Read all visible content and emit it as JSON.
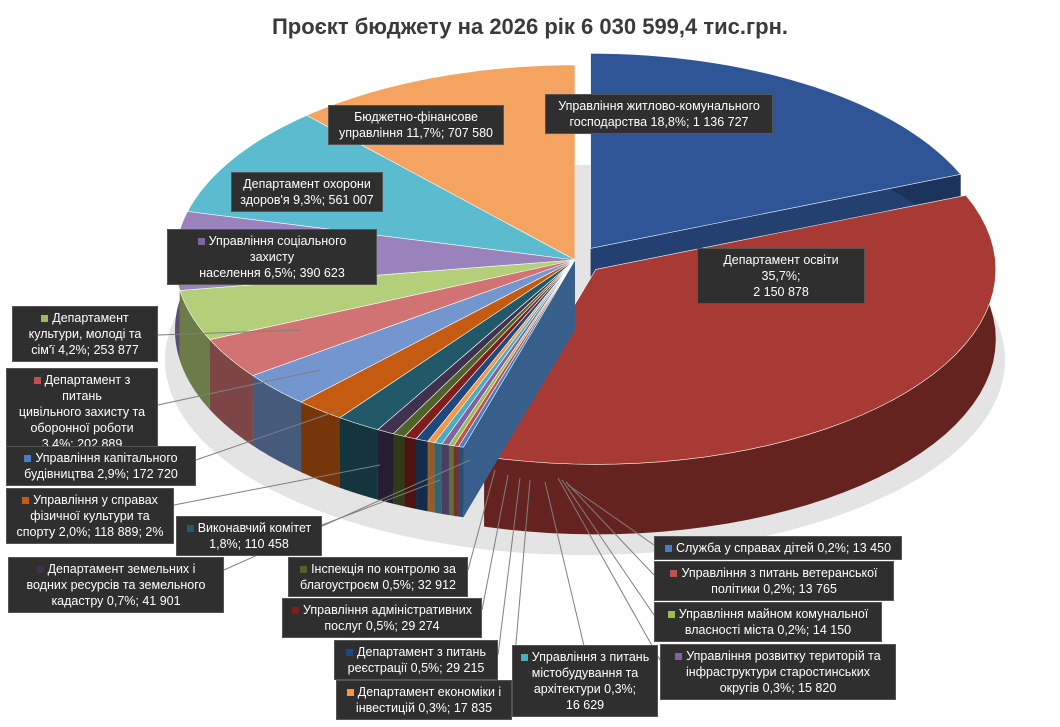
{
  "title": "Проєкт бюджету на 2026 рік 6 030 599,4 тис.грн.",
  "chart_data": {
    "type": "pie",
    "title": "Проєкт бюджету на 2026 рік 6 030 599,4 тис.грн.",
    "total": 6030599.4,
    "slices": [
      {
        "label": "Управління житлово-комунального господарства 18,8%; 1 136 727",
        "name": "Управління житлово-комунального господарства",
        "percent": 18.8,
        "value": 1136727,
        "color": "#2f5597"
      },
      {
        "label": "Департамент освіти 35,7%; 2 150 878",
        "name": "Департамент освіти",
        "percent": 35.7,
        "value": 2150878,
        "color": "#a83a36"
      },
      {
        "label": "Служба у справах дітей 0,2%; 13 450",
        "name": "Служба у справах дітей",
        "percent": 0.2,
        "value": 13450,
        "color": "#4a7ebb"
      },
      {
        "label": "Управління з питань ветеранської політики 0,2%; 13 765",
        "name": "Управління з питань ветеранської політики",
        "percent": 0.2,
        "value": 13765,
        "color": "#c0504d"
      },
      {
        "label": "Управління майном комунальної власності міста 0,2%; 14 150",
        "name": "Управління майном комунальної власності міста",
        "percent": 0.2,
        "value": 14150,
        "color": "#9bbb59"
      },
      {
        "label": "Управління розвитку територій та інфраструктури старостинських округів 0,3%; 15 820",
        "name": "Управління розвитку територій та інфраструктури старостинських округів",
        "percent": 0.3,
        "value": 15820,
        "color": "#8064a2"
      },
      {
        "label": "Управління з питань містобудування та архітектури 0,3%; 16 629",
        "name": "Управління з питань містобудування та архітектури",
        "percent": 0.3,
        "value": 16629,
        "color": "#4bacc6"
      },
      {
        "label": "Департамент економіки і інвестицій 0,3%; 17 835",
        "name": "Департамент економіки і інвестицій",
        "percent": 0.3,
        "value": 17835,
        "color": "#f79646"
      },
      {
        "label": "Департамент з питань реєстрації 0,5%; 29 215",
        "name": "Департамент з питань реєстрації",
        "percent": 0.5,
        "value": 29215,
        "color": "#1f497d"
      },
      {
        "label": "Управління адміністративних послуг 0,5%; 29 274",
        "name": "Управління адміністративних послуг",
        "percent": 0.5,
        "value": 29274,
        "color": "#7f1f1d"
      },
      {
        "label": "Інспекція по контролю за благоустроєм 0,5%; 32 912",
        "name": "Інспекція по контролю за благоустроєм",
        "percent": 0.5,
        "value": 32912,
        "color": "#4f6228"
      },
      {
        "label": "Департамент земельних і водних ресурсів та земельного кадастру 0,7%; 41 901",
        "name": "Департамент земельних і водних ресурсів та земельного кадастру",
        "percent": 0.7,
        "value": 41901,
        "color": "#403151"
      },
      {
        "label": "Виконавчий комітет 1,8%; 110 458",
        "name": "Виконавчий комітет",
        "percent": 1.8,
        "value": 110458,
        "color": "#215968"
      },
      {
        "label": "Управління у справах фізичної культури та спорту 2,0%; 118 889; 2%",
        "name": "Управління у справах фізичної культури та спорту",
        "percent": 2.0,
        "value": 118889,
        "color": "#c55a11"
      },
      {
        "label": "Управління капітального будівництва 2,9%; 172 720",
        "name": "Управління капітального будівництва",
        "percent": 2.9,
        "value": 172720,
        "color": "#7496cf"
      },
      {
        "label": "Департамент з питань цивільного захисту та оборонної роботи 3,4%; 202 889",
        "name": "Департамент з питань цивільного захисту та оборонної роботи",
        "percent": 3.4,
        "value": 202889,
        "color": "#d17373"
      },
      {
        "label": "Департамент культури, молоді та сім'ї 4,2%; 253 877",
        "name": "Департамент культури, молоді та сім'ї",
        "percent": 4.2,
        "value": 253877,
        "color": "#b3cf7a"
      },
      {
        "label": "Управління соціального захисту населення 6,5%; 390 623",
        "name": "Управління соціального захисту населення",
        "percent": 6.5,
        "value": 390623,
        "color": "#9a82bc"
      },
      {
        "label": "Департамент охорони здоров'я 9,3%; 561 007",
        "name": "Департамент охорони здоров'я",
        "percent": 9.3,
        "value": 561007,
        "color": "#5bbccf"
      },
      {
        "label": "Бюджетно-фінансове управління 11,7%; 707 580",
        "name": "Бюджетно-фінансове управління",
        "percent": 11.7,
        "value": 707580,
        "color": "#f4a460"
      }
    ]
  },
  "labels": {
    "zhkg": [
      "Управління житлово-комунального",
      "господарства 18,8%; 1 136 727"
    ],
    "osvita": [
      "Департамент освіти 35,7%;",
      "2 150 878"
    ],
    "bfu": [
      "Бюджетно-фінансове",
      "управління 11,7%; 707 580"
    ],
    "ohorona": [
      "Департамент охорони",
      "здоров'я 9,3%; 561 007"
    ],
    "socz": [
      "Управління соціального захисту",
      "населення 6,5%; 390 623"
    ],
    "kultura": [
      "Департамент",
      "культури, молоді та",
      "сім'ї  4,2%; 253 877"
    ],
    "cz": [
      "Департамент з питань",
      "цивільного захисту та",
      "оборонної роботи",
      "3,4%; 202 889"
    ],
    "kapbud": [
      "Управління капітального",
      "будівництва 2,9%; 172 720"
    ],
    "sport": [
      "Управління у справах",
      "фізичної культури та",
      "спорту 2,0%; 118 889; 2%"
    ],
    "vykon": [
      "Виконавчий комітет",
      "1,8%; 110 458"
    ],
    "zemel": [
      "Департамент земельних і",
      "водних ресурсів та земельного",
      "кадастру 0,7%; 41 901"
    ],
    "inspekcia": [
      "Інспекція по контролю за",
      "благоустроєм 0,5%; 32 912"
    ],
    "admin": [
      "Управління адміністративних",
      "послуг 0,5%; 29 274"
    ],
    "reestr": [
      "Департамент з питань",
      "реєстрації 0,5%; 29 215"
    ],
    "ekon": [
      "Департамент економіки і",
      "інвестицій 0,3%; 17 835"
    ],
    "mistobud": [
      "Управління з питань",
      "містобудування та",
      "архітектури 0,3%;",
      "16 629"
    ],
    "dity": [
      "Служба у справах дітей 0,2%; 13 450"
    ],
    "veteran": [
      "Управління з питань ветеранської",
      "політики 0,2%; 13 765"
    ],
    "mayno": [
      "Управління майном комунальної",
      "власності міста 0,2%; 14 150"
    ],
    "rozvytok": [
      "Управління розвитку територій та",
      "інфраструктури старостинських",
      "округів 0,3%; 15 820"
    ]
  }
}
